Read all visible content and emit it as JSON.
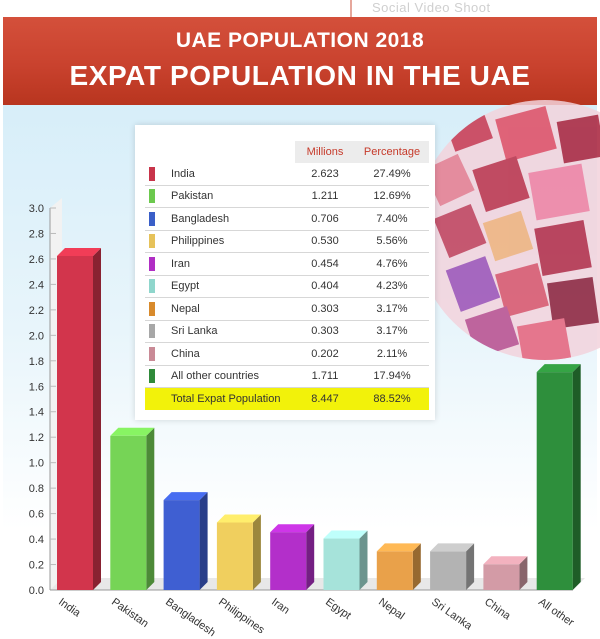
{
  "header": {
    "ghost_text": "Social Video Shoot",
    "title_line1": "UAE POPULATION 2018",
    "title_line2": "EXPAT POPULATION IN THE UAE"
  },
  "table": {
    "col_millions": "Millions",
    "col_percentage": "Percentage",
    "rows": [
      {
        "name": "India",
        "millions": "2.623",
        "percentage": "27.49%",
        "color": "#c8344a"
      },
      {
        "name": "Pakistan",
        "millions": "1.211",
        "percentage": "12.69%",
        "color": "#6cc94e"
      },
      {
        "name": "Bangladesh",
        "millions": "0.706",
        "percentage": "7.40%",
        "color": "#3a5fc8"
      },
      {
        "name": "Philippines",
        "millions": "0.530",
        "percentage": "5.56%",
        "color": "#e6c25a"
      },
      {
        "name": "Iran",
        "millions": "0.454",
        "percentage": "4.76%",
        "color": "#b02ec4"
      },
      {
        "name": "Egypt",
        "millions": "0.404",
        "percentage": "4.23%",
        "color": "#8fd6cc"
      },
      {
        "name": "Nepal",
        "millions": "0.303",
        "percentage": "3.17%",
        "color": "#d88a2c"
      },
      {
        "name": "Sri Lanka",
        "millions": "0.303",
        "percentage": "3.17%",
        "color": "#a7a7a7"
      },
      {
        "name": "China",
        "millions": "0.202",
        "percentage": "2.11%",
        "color": "#c98a96"
      },
      {
        "name": "All other countries",
        "millions": "1.711",
        "percentage": "17.94%",
        "color": "#2f8a3a"
      }
    ],
    "total": {
      "name": "Total Expat Population",
      "millions": "8.447",
      "percentage": "88.52%"
    }
  },
  "chart_data": {
    "type": "bar",
    "categories": [
      "India",
      "Pakistan",
      "Bangladesh",
      "Philippines",
      "Iran",
      "Egypt",
      "Nepal",
      "Sri Lanka",
      "China",
      "All other"
    ],
    "values": [
      2.623,
      1.211,
      0.706,
      0.53,
      0.454,
      0.404,
      0.303,
      0.303,
      0.202,
      1.711
    ],
    "ylim": [
      0,
      3.0
    ],
    "yticks": [
      "0.0",
      "0.2",
      "0.4",
      "0.6",
      "0.8",
      "1.0",
      "1.2",
      "1.4",
      "1.6",
      "1.8",
      "2.0",
      "2.2",
      "2.4",
      "2.6",
      "2.8",
      "3.0"
    ],
    "colors": [
      "#d2354c",
      "#76d456",
      "#3f5fd2",
      "#f0cf5e",
      "#b32fca",
      "#a6e3da",
      "#e9a14a",
      "#b3b3b3",
      "#d39ba6",
      "#2e8f3c"
    ],
    "title": "",
    "xlabel": "",
    "ylabel": ""
  }
}
